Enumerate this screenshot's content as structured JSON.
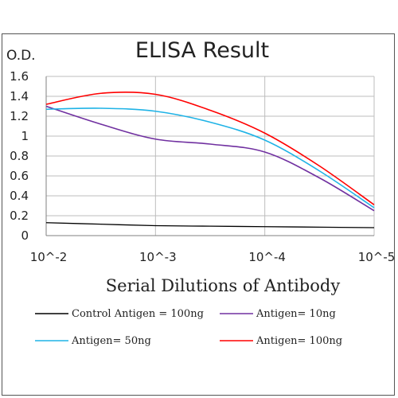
{
  "chart_data": {
    "type": "line",
    "title": "ELISA Result",
    "ylabel": "O.D.",
    "xlabel": "Serial Dilutions of Antibody",
    "ylim": [
      0,
      1.6
    ],
    "yticks": [
      0,
      0.2,
      0.4,
      0.6,
      0.8,
      1,
      1.2,
      1.4,
      1.6
    ],
    "ytick_labels": [
      "0",
      "0.2",
      "0.4",
      "0.6",
      "0.8",
      "1",
      "1.2",
      "1.4",
      "1.6"
    ],
    "x_categories": [
      "10^-2",
      "10^-3",
      "10^-4",
      "10^-5"
    ],
    "grid": true,
    "legend_position": "bottom",
    "series": [
      {
        "name": "Control Antigen = 100ng",
        "color": "#000000",
        "x": [
          -2,
          -2.5,
          -3,
          -3.5,
          -4,
          -4.5,
          -5
        ],
        "values": [
          0.13,
          0.115,
          0.1,
          0.095,
          0.09,
          0.085,
          0.08
        ]
      },
      {
        "name": "Antigen= 10ng",
        "color": "#7030a0",
        "x": [
          -2,
          -2.5,
          -3,
          -3.5,
          -4,
          -4.5,
          -5
        ],
        "values": [
          1.3,
          1.12,
          0.97,
          0.92,
          0.84,
          0.58,
          0.25
        ]
      },
      {
        "name": "Antigen= 50ng",
        "color": "#1fb3e6",
        "x": [
          -2,
          -2.5,
          -3,
          -3.5,
          -4,
          -4.5,
          -5
        ],
        "values": [
          1.27,
          1.28,
          1.25,
          1.14,
          0.96,
          0.65,
          0.28
        ]
      },
      {
        "name": "Antigen= 100ng",
        "color": "#ff0000",
        "x": [
          -2,
          -2.5,
          -3,
          -3.5,
          -4,
          -4.5,
          -5
        ],
        "values": [
          1.32,
          1.43,
          1.42,
          1.26,
          1.03,
          0.7,
          0.31
        ]
      }
    ]
  }
}
